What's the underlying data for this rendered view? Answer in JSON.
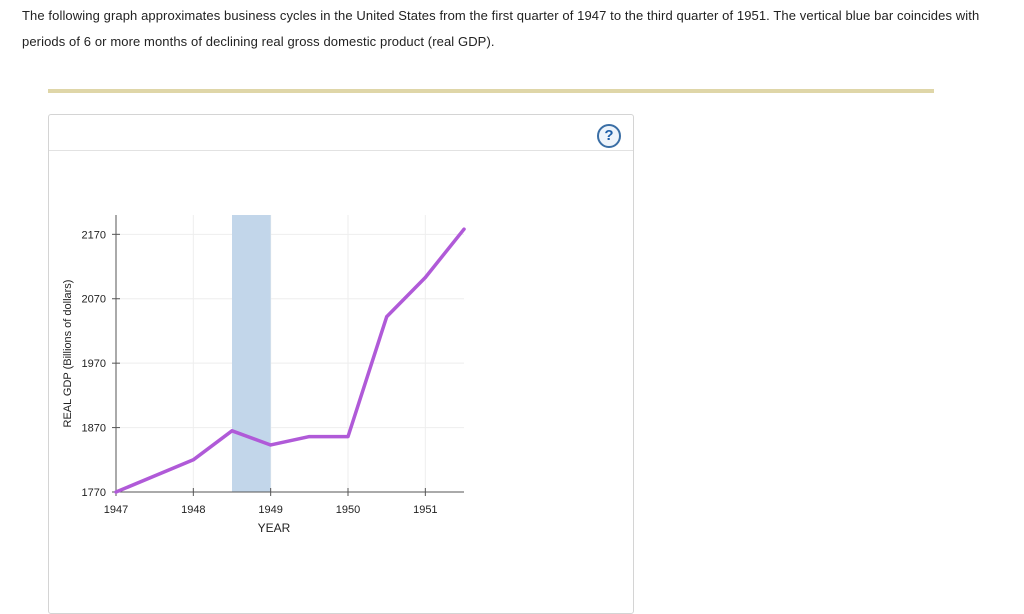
{
  "intro_text": "The following graph approximates business cycles in the United States from the first quarter of 1947 to the third quarter of 1951. The vertical blue bar coincides with periods of 6 or more months of declining real gross domestic product (real GDP).",
  "help_label": "?",
  "colors": {
    "line": "#b05ad8",
    "recession_bar": "#c2d6ea",
    "divider": "#dfd6a8",
    "help": "#1f5fa8"
  },
  "icons": {
    "help": "question-circle-icon"
  },
  "chart_data": {
    "type": "line",
    "xlabel": "YEAR",
    "ylabel": "REAL GDP (Billions of dollars)",
    "xlim": [
      1947,
      1951.5
    ],
    "ylim": [
      1770,
      2200
    ],
    "x_ticks": [
      1947,
      1948,
      1949,
      1950,
      1951
    ],
    "y_ticks": [
      1770,
      1870,
      1970,
      2070,
      2170
    ],
    "grid": true,
    "recession_band": {
      "x_start": 1948.5,
      "x_end": 1949.0
    },
    "series": [
      {
        "x": [
          1947,
          1948,
          1948.5,
          1949,
          1949.5,
          1950,
          1950.5,
          1951,
          1951.5
        ],
        "y": [
          1770,
          1820,
          1865,
          1843,
          1856,
          1856,
          2042,
          2103,
          2178
        ]
      }
    ]
  }
}
